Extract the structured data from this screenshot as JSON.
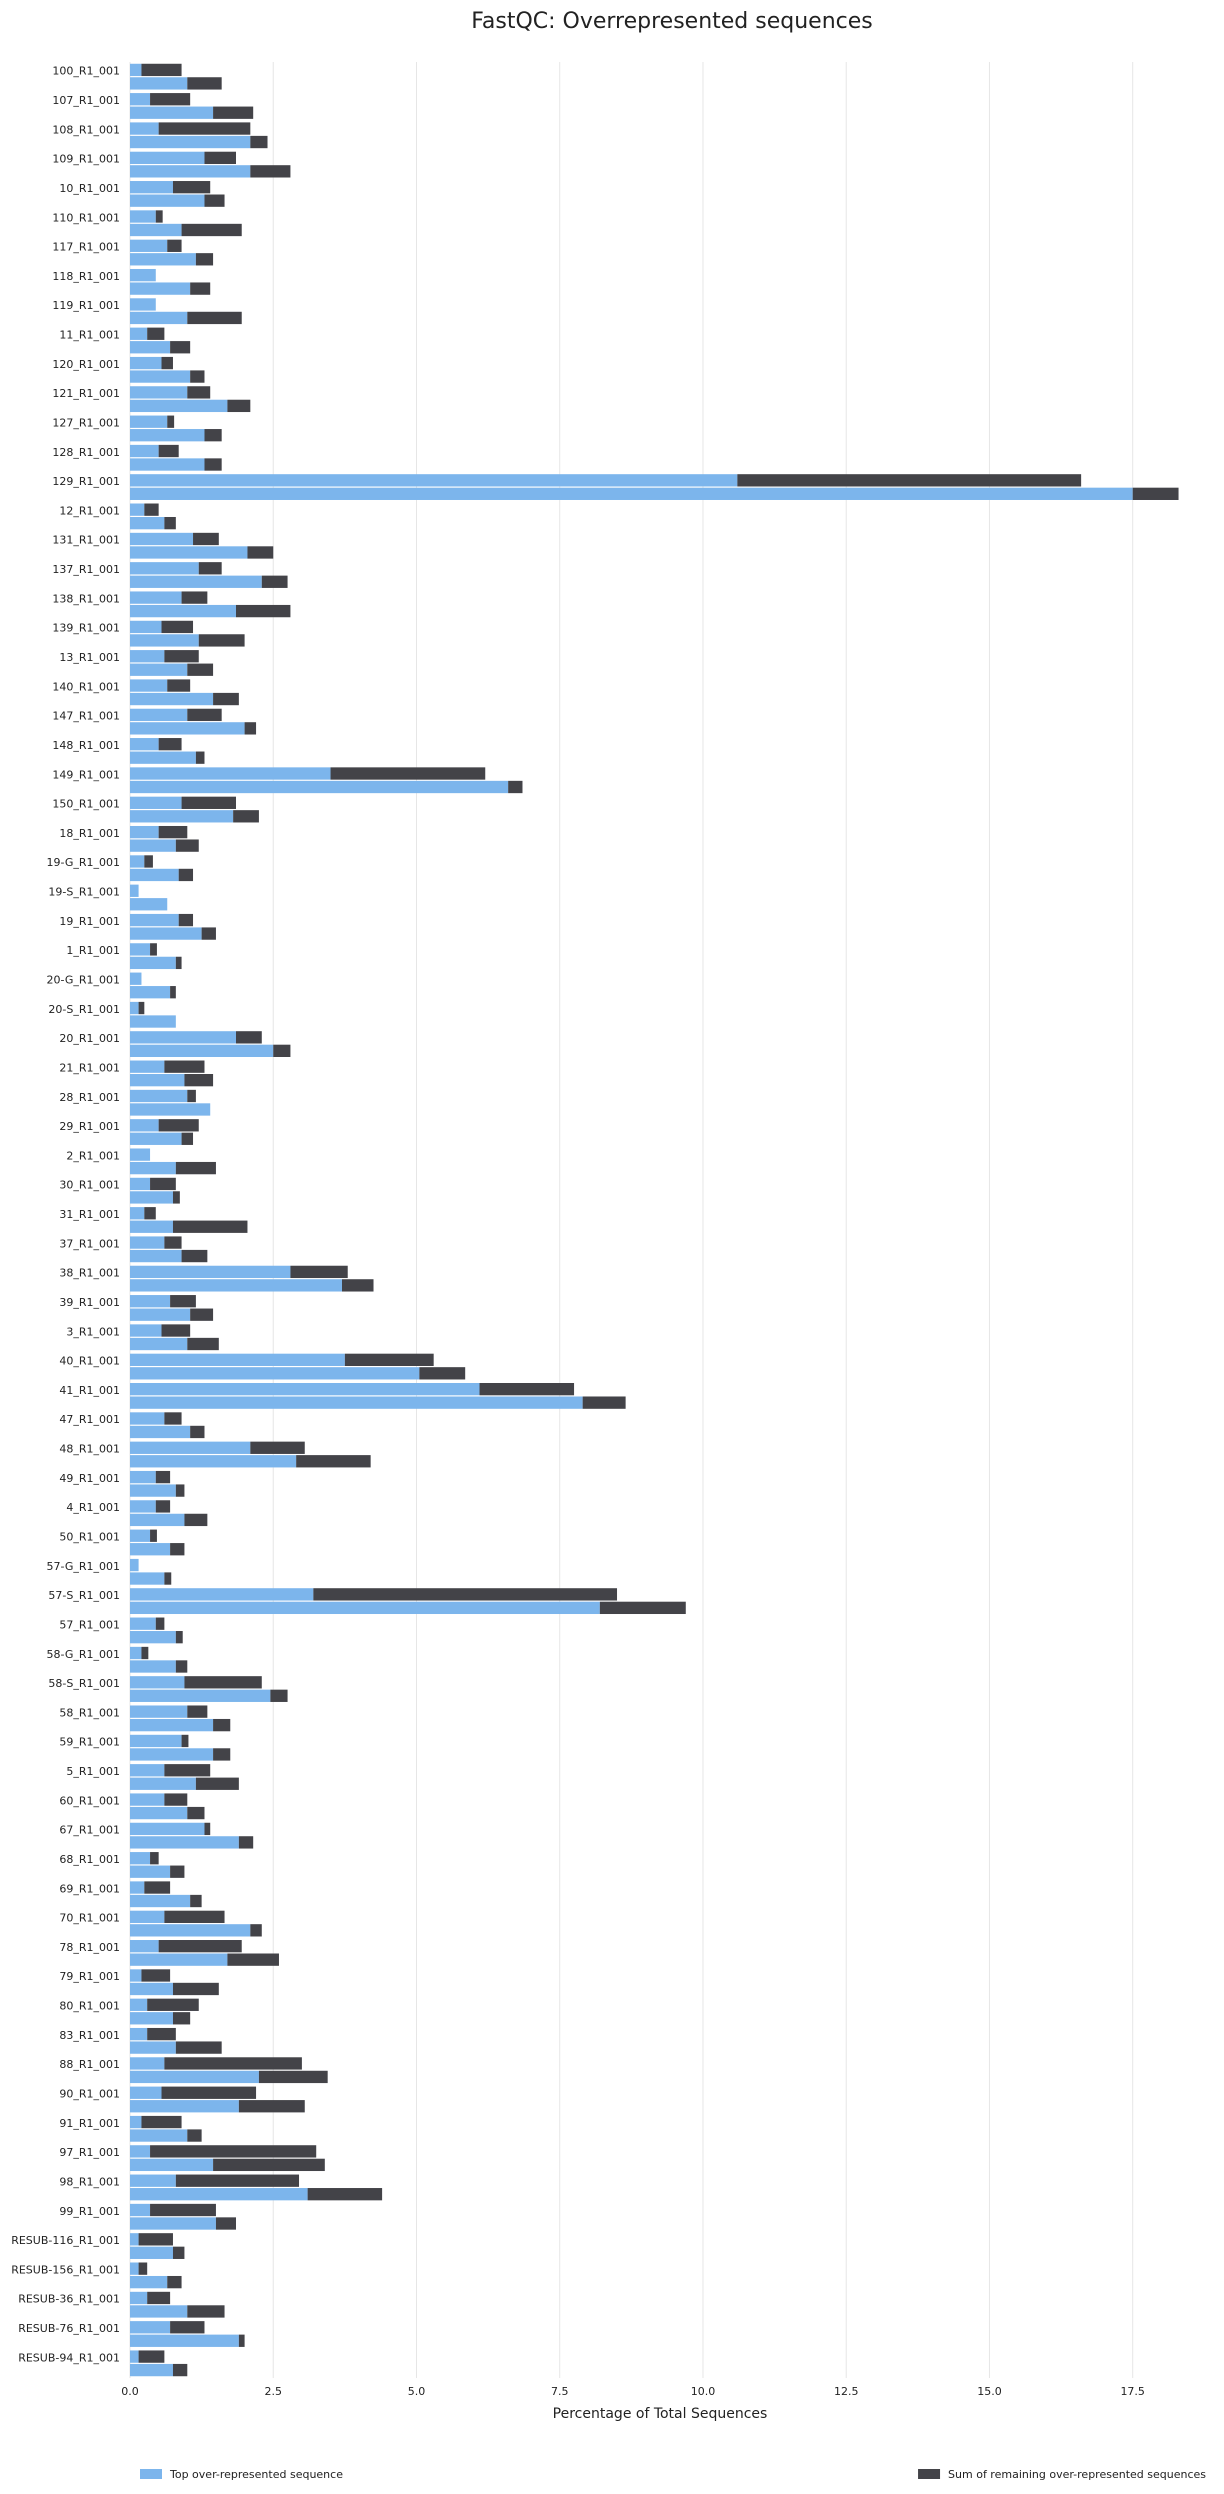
{
  "chart_data": {
    "type": "bar",
    "orientation": "horizontal",
    "stacked": true,
    "title": "FastQC: Overrepresented sequences",
    "xlabel": "Percentage of Total Sequences",
    "ylabel": "",
    "xlim": [
      0,
      18.5
    ],
    "xticks": [
      "0.0",
      "2.5",
      "5.0",
      "7.5",
      "10.0",
      "12.5",
      "15.0",
      "17.5"
    ],
    "grid": "vertical",
    "legend_position": "bottom",
    "colors": {
      "top": "#7cb5ec",
      "remaining": "#434348"
    },
    "series": [
      {
        "name": "Top over-represented sequence"
      },
      {
        "name": "Sum of remaining over-represented sequences"
      }
    ],
    "samples": [
      {
        "label": "100_R1_001",
        "a": [
          0.2,
          0.7
        ],
        "b": [
          1.0,
          0.6
        ]
      },
      {
        "label": "107_R1_001",
        "a": [
          0.35,
          0.7
        ],
        "b": [
          1.45,
          0.7
        ]
      },
      {
        "label": "108_R1_001",
        "a": [
          0.5,
          1.6
        ],
        "b": [
          2.1,
          0.3
        ]
      },
      {
        "label": "109_R1_001",
        "a": [
          1.3,
          0.55
        ],
        "b": [
          2.1,
          0.7
        ]
      },
      {
        "label": "10_R1_001",
        "a": [
          0.75,
          0.65
        ],
        "b": [
          1.3,
          0.35
        ]
      },
      {
        "label": "110_R1_001",
        "a": [
          0.45,
          0.12
        ],
        "b": [
          0.9,
          1.05
        ]
      },
      {
        "label": "117_R1_001",
        "a": [
          0.65,
          0.25
        ],
        "b": [
          1.15,
          0.3
        ]
      },
      {
        "label": "118_R1_001",
        "a": [
          0.45,
          0.0
        ],
        "b": [
          1.05,
          0.35
        ]
      },
      {
        "label": "119_R1_001",
        "a": [
          0.45,
          0.0
        ],
        "b": [
          1.0,
          0.95
        ]
      },
      {
        "label": "11_R1_001",
        "a": [
          0.3,
          0.3
        ],
        "b": [
          0.7,
          0.35
        ]
      },
      {
        "label": "120_R1_001",
        "a": [
          0.55,
          0.2
        ],
        "b": [
          1.05,
          0.25
        ]
      },
      {
        "label": "121_R1_001",
        "a": [
          1.0,
          0.4
        ],
        "b": [
          1.7,
          0.4
        ]
      },
      {
        "label": "127_R1_001",
        "a": [
          0.65,
          0.12
        ],
        "b": [
          1.3,
          0.3
        ]
      },
      {
        "label": "128_R1_001",
        "a": [
          0.5,
          0.35
        ],
        "b": [
          1.3,
          0.3
        ]
      },
      {
        "label": "129_R1_001",
        "a": [
          10.6,
          6.0
        ],
        "b": [
          17.5,
          0.8
        ]
      },
      {
        "label": "12_R1_001",
        "a": [
          0.25,
          0.25
        ],
        "b": [
          0.6,
          0.2
        ]
      },
      {
        "label": "131_R1_001",
        "a": [
          1.1,
          0.45
        ],
        "b": [
          2.05,
          0.45
        ]
      },
      {
        "label": "137_R1_001",
        "a": [
          1.2,
          0.4
        ],
        "b": [
          2.3,
          0.45
        ]
      },
      {
        "label": "138_R1_001",
        "a": [
          0.9,
          0.45
        ],
        "b": [
          1.85,
          0.95
        ]
      },
      {
        "label": "139_R1_001",
        "a": [
          0.55,
          0.55
        ],
        "b": [
          1.2,
          0.8
        ]
      },
      {
        "label": "13_R1_001",
        "a": [
          0.6,
          0.6
        ],
        "b": [
          1.0,
          0.45
        ]
      },
      {
        "label": "140_R1_001",
        "a": [
          0.65,
          0.4
        ],
        "b": [
          1.45,
          0.45
        ]
      },
      {
        "label": "147_R1_001",
        "a": [
          1.0,
          0.6
        ],
        "b": [
          2.0,
          0.2
        ]
      },
      {
        "label": "148_R1_001",
        "a": [
          0.5,
          0.4
        ],
        "b": [
          1.15,
          0.15
        ]
      },
      {
        "label": "149_R1_001",
        "a": [
          3.5,
          2.7
        ],
        "b": [
          6.6,
          0.25
        ]
      },
      {
        "label": "150_R1_001",
        "a": [
          0.9,
          0.95
        ],
        "b": [
          1.8,
          0.45
        ]
      },
      {
        "label": "18_R1_001",
        "a": [
          0.5,
          0.5
        ],
        "b": [
          0.8,
          0.4
        ]
      },
      {
        "label": "19-G_R1_001",
        "a": [
          0.25,
          0.15
        ],
        "b": [
          0.85,
          0.25
        ]
      },
      {
        "label": "19-S_R1_001",
        "a": [
          0.15,
          0.0
        ],
        "b": [
          0.65,
          0.0
        ]
      },
      {
        "label": "19_R1_001",
        "a": [
          0.85,
          0.25
        ],
        "b": [
          1.25,
          0.25
        ]
      },
      {
        "label": "1_R1_001",
        "a": [
          0.35,
          0.12
        ],
        "b": [
          0.8,
          0.1
        ]
      },
      {
        "label": "20-G_R1_001",
        "a": [
          0.2,
          0.0
        ],
        "b": [
          0.7,
          0.1
        ]
      },
      {
        "label": "20-S_R1_001",
        "a": [
          0.15,
          0.1
        ],
        "b": [
          0.8,
          0.0
        ]
      },
      {
        "label": "20_R1_001",
        "a": [
          1.85,
          0.45
        ],
        "b": [
          2.5,
          0.3
        ]
      },
      {
        "label": "21_R1_001",
        "a": [
          0.6,
          0.7
        ],
        "b": [
          0.95,
          0.5
        ]
      },
      {
        "label": "28_R1_001",
        "a": [
          1.0,
          0.15
        ],
        "b": [
          1.4,
          0.0
        ]
      },
      {
        "label": "29_R1_001",
        "a": [
          0.5,
          0.7
        ],
        "b": [
          0.9,
          0.2
        ]
      },
      {
        "label": "2_R1_001",
        "a": [
          0.35,
          0.0
        ],
        "b": [
          0.8,
          0.7
        ]
      },
      {
        "label": "30_R1_001",
        "a": [
          0.35,
          0.45
        ],
        "b": [
          0.75,
          0.12
        ]
      },
      {
        "label": "31_R1_001",
        "a": [
          0.25,
          0.2
        ],
        "b": [
          0.75,
          1.3
        ]
      },
      {
        "label": "37_R1_001",
        "a": [
          0.6,
          0.3
        ],
        "b": [
          0.9,
          0.45
        ]
      },
      {
        "label": "38_R1_001",
        "a": [
          2.8,
          1.0
        ],
        "b": [
          3.7,
          0.55
        ]
      },
      {
        "label": "39_R1_001",
        "a": [
          0.7,
          0.45
        ],
        "b": [
          1.05,
          0.4
        ]
      },
      {
        "label": "3_R1_001",
        "a": [
          0.55,
          0.5
        ],
        "b": [
          1.0,
          0.55
        ]
      },
      {
        "label": "40_R1_001",
        "a": [
          3.75,
          1.55
        ],
        "b": [
          5.05,
          0.8
        ]
      },
      {
        "label": "41_R1_001",
        "a": [
          6.1,
          1.65
        ],
        "b": [
          7.9,
          0.75
        ]
      },
      {
        "label": "47_R1_001",
        "a": [
          0.6,
          0.3
        ],
        "b": [
          1.05,
          0.25
        ]
      },
      {
        "label": "48_R1_001",
        "a": [
          2.1,
          0.95
        ],
        "b": [
          2.9,
          1.3
        ]
      },
      {
        "label": "49_R1_001",
        "a": [
          0.45,
          0.25
        ],
        "b": [
          0.8,
          0.15
        ]
      },
      {
        "label": "4_R1_001",
        "a": [
          0.45,
          0.25
        ],
        "b": [
          0.95,
          0.4
        ]
      },
      {
        "label": "50_R1_001",
        "a": [
          0.35,
          0.12
        ],
        "b": [
          0.7,
          0.25
        ]
      },
      {
        "label": "57-G_R1_001",
        "a": [
          0.15,
          0.0
        ],
        "b": [
          0.6,
          0.12
        ]
      },
      {
        "label": "57-S_R1_001",
        "a": [
          3.2,
          5.3
        ],
        "b": [
          8.2,
          1.5
        ]
      },
      {
        "label": "57_R1_001",
        "a": [
          0.45,
          0.15
        ],
        "b": [
          0.8,
          0.12
        ]
      },
      {
        "label": "58-G_R1_001",
        "a": [
          0.2,
          0.12
        ],
        "b": [
          0.8,
          0.2
        ]
      },
      {
        "label": "58-S_R1_001",
        "a": [
          0.95,
          1.35
        ],
        "b": [
          2.45,
          0.3
        ]
      },
      {
        "label": "58_R1_001",
        "a": [
          1.0,
          0.35
        ],
        "b": [
          1.45,
          0.3
        ]
      },
      {
        "label": "59_R1_001",
        "a": [
          0.9,
          0.12
        ],
        "b": [
          1.45,
          0.3
        ]
      },
      {
        "label": "5_R1_001",
        "a": [
          0.6,
          0.8
        ],
        "b": [
          1.15,
          0.75
        ]
      },
      {
        "label": "60_R1_001",
        "a": [
          0.6,
          0.4
        ],
        "b": [
          1.0,
          0.3
        ]
      },
      {
        "label": "67_R1_001",
        "a": [
          1.3,
          0.1
        ],
        "b": [
          1.9,
          0.25
        ]
      },
      {
        "label": "68_R1_001",
        "a": [
          0.35,
          0.15
        ],
        "b": [
          0.7,
          0.25
        ]
      },
      {
        "label": "69_R1_001",
        "a": [
          0.25,
          0.45
        ],
        "b": [
          1.05,
          0.2
        ]
      },
      {
        "label": "70_R1_001",
        "a": [
          0.6,
          1.05
        ],
        "b": [
          2.1,
          0.2
        ]
      },
      {
        "label": "78_R1_001",
        "a": [
          0.5,
          1.45
        ],
        "b": [
          1.7,
          0.9
        ]
      },
      {
        "label": "79_R1_001",
        "a": [
          0.2,
          0.5
        ],
        "b": [
          0.75,
          0.8
        ]
      },
      {
        "label": "80_R1_001",
        "a": [
          0.3,
          0.9
        ],
        "b": [
          0.75,
          0.3
        ]
      },
      {
        "label": "83_R1_001",
        "a": [
          0.3,
          0.5
        ],
        "b": [
          0.8,
          0.8
        ]
      },
      {
        "label": "88_R1_001",
        "a": [
          0.6,
          2.4
        ],
        "b": [
          2.25,
          1.2
        ]
      },
      {
        "label": "90_R1_001",
        "a": [
          0.55,
          1.65
        ],
        "b": [
          1.9,
          1.15
        ]
      },
      {
        "label": "91_R1_001",
        "a": [
          0.2,
          0.7
        ],
        "b": [
          1.0,
          0.25
        ]
      },
      {
        "label": "97_R1_001",
        "a": [
          0.35,
          2.9
        ],
        "b": [
          1.45,
          1.95
        ]
      },
      {
        "label": "98_R1_001",
        "a": [
          0.8,
          2.15
        ],
        "b": [
          3.1,
          1.3
        ]
      },
      {
        "label": "99_R1_001",
        "a": [
          0.35,
          1.15
        ],
        "b": [
          1.5,
          0.35
        ]
      },
      {
        "label": "RESUB-116_R1_001",
        "a": [
          0.15,
          0.6
        ],
        "b": [
          0.75,
          0.2
        ]
      },
      {
        "label": "RESUB-156_R1_001",
        "a": [
          0.15,
          0.15
        ],
        "b": [
          0.65,
          0.25
        ]
      },
      {
        "label": "RESUB-36_R1_001",
        "a": [
          0.3,
          0.4
        ],
        "b": [
          1.0,
          0.65
        ]
      },
      {
        "label": "RESUB-76_R1_001",
        "a": [
          0.7,
          0.6
        ],
        "b": [
          1.9,
          0.1
        ]
      },
      {
        "label": "RESUB-94_R1_001",
        "a": [
          0.15,
          0.45
        ],
        "b": [
          0.75,
          0.25
        ]
      }
    ]
  }
}
